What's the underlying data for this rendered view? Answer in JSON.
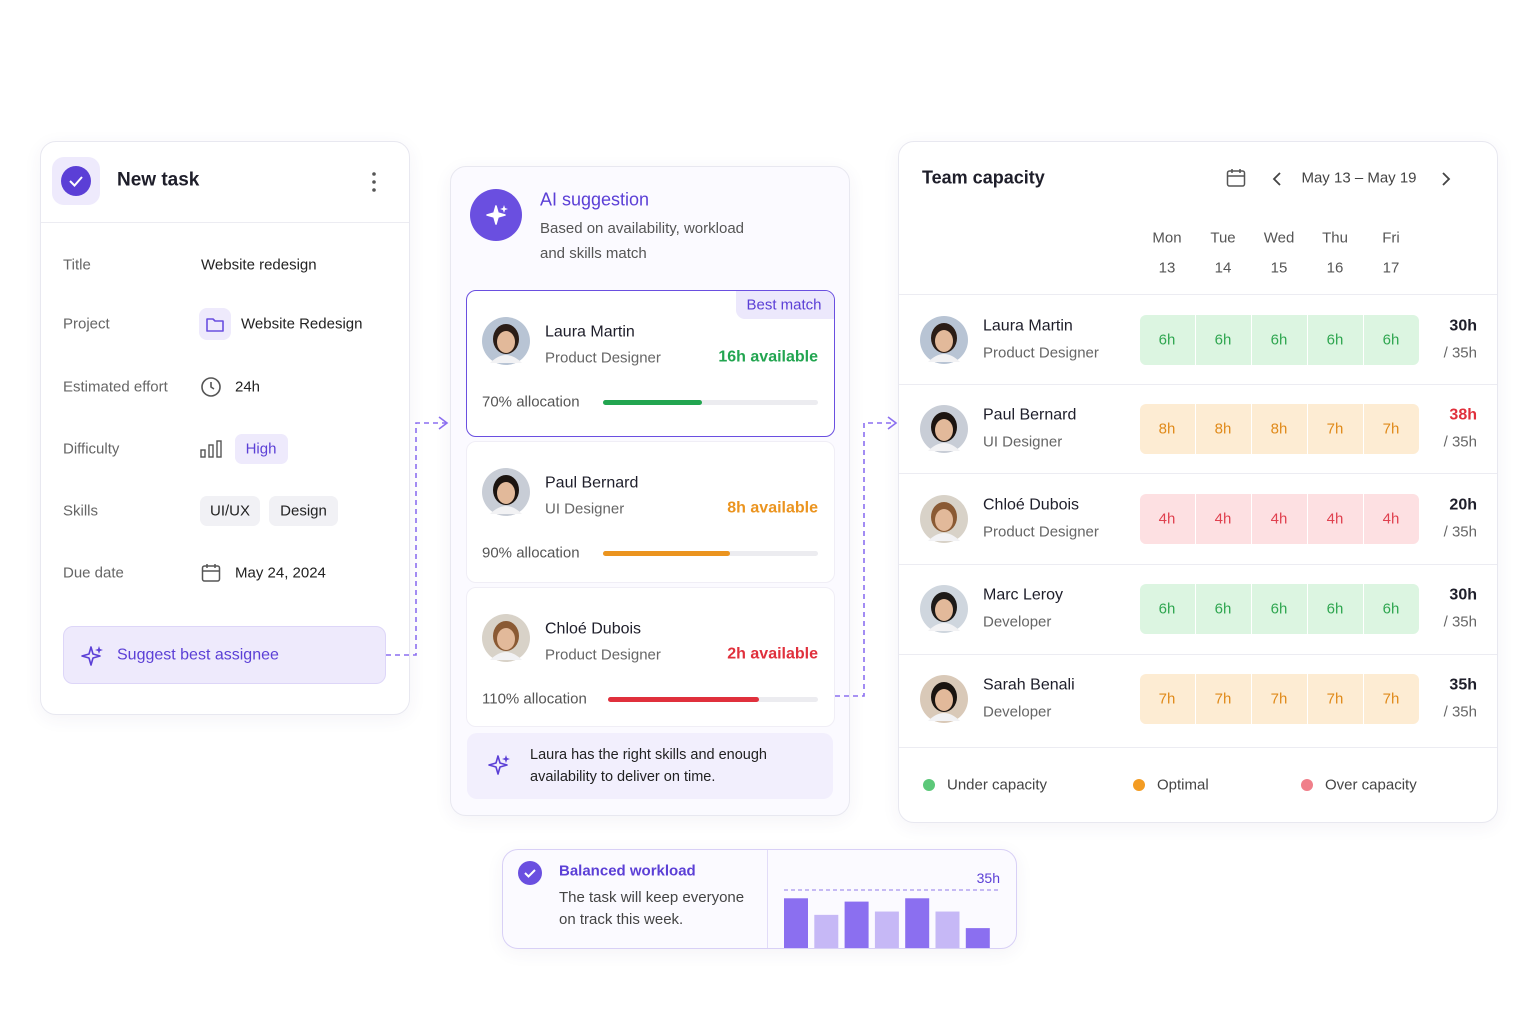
{
  "task": {
    "title": "New task",
    "fields": {
      "title": {
        "label": "Title",
        "value": "Website redesign"
      },
      "project": {
        "label": "Project",
        "value": "Website Redesign"
      },
      "effort": {
        "label": "Estimated effort",
        "value": "24h"
      },
      "difficulty": {
        "label": "Difficulty",
        "value": "High"
      },
      "skills": {
        "label": "Skills",
        "values": [
          "UI/UX",
          "Design"
        ]
      },
      "due": {
        "label": "Due date",
        "value": "May 24, 2024"
      }
    },
    "button": "Suggest best assignee"
  },
  "ai": {
    "title": "AI suggestion",
    "subtitle": "Based on availability, workload and skills match",
    "badge": "Best match",
    "candidates": [
      {
        "name": "Laura Martin",
        "role": "Product Designer",
        "available": "16h available",
        "allocation": 70,
        "allocation_label": "70% allocation",
        "color": "#22a550"
      },
      {
        "name": "Paul Bernard",
        "role": "UI Designer",
        "available": "8h available",
        "allocation": 90,
        "allocation_label": "90% allocation",
        "color": "#eb941f"
      },
      {
        "name": "Chloé Dubois",
        "role": "Product Designer",
        "available": "2h available",
        "allocation": 110,
        "allocation_label": "110% allocation",
        "color": "#e0303c"
      }
    ],
    "note": "Laura has the right skills and enough availability to deliver on time."
  },
  "capacity": {
    "title": "Team capacity",
    "range": "May 13 – May 19",
    "days": [
      {
        "day": "Mon",
        "date": 13
      },
      {
        "day": "Tue",
        "date": 14
      },
      {
        "day": "Wed",
        "date": 15
      },
      {
        "day": "Thu",
        "date": 16
      },
      {
        "day": "Fri",
        "date": 17
      }
    ],
    "legend": [
      {
        "label": "Under capacity",
        "color": "#5cc879",
        "bg": "#dcf5e1",
        "fg": "#2fa650"
      },
      {
        "label": "Optimal",
        "color": "#f39c23",
        "bg": "#fdecd3",
        "fg": "#e08a1a"
      },
      {
        "label": "Over capacity",
        "color": "#f07f8a",
        "bg": "#fde0e2",
        "fg": "#e0414f"
      }
    ],
    "members": [
      {
        "name": "Laura Martin",
        "role": "Product Designer",
        "hours": [
          "6h",
          "6h",
          "6h",
          "6h",
          "6h"
        ],
        "tone": 0,
        "total": "30h",
        "limit": "/ 35h",
        "total_color": "#1e1e2a"
      },
      {
        "name": "Paul Bernard",
        "role": "UI Designer",
        "hours": [
          "8h",
          "8h",
          "8h",
          "7h",
          "7h"
        ],
        "tone": 1,
        "total": "38h",
        "limit": "/ 35h",
        "total_color": "#e0303c"
      },
      {
        "name": "Chloé Dubois",
        "role": "Product Designer",
        "hours": [
          "4h",
          "4h",
          "4h",
          "4h",
          "4h"
        ],
        "tone": 2,
        "total": "20h",
        "limit": "/ 35h",
        "total_color": "#1e1e2a"
      },
      {
        "name": "Marc Leroy",
        "role": "Developer",
        "hours": [
          "6h",
          "6h",
          "6h",
          "6h",
          "6h"
        ],
        "tone": 0,
        "total": "30h",
        "limit": "/ 35h",
        "total_color": "#1e1e2a"
      },
      {
        "name": "Sarah Benali",
        "role": "Developer",
        "hours": [
          "7h",
          "7h",
          "7h",
          "7h",
          "7h"
        ],
        "tone": 1,
        "total": "35h",
        "limit": "/ 35h",
        "total_color": "#1e1e2a"
      }
    ]
  },
  "summary": {
    "title": "Balanced workload",
    "text": "The task will keep everyone on track this week.",
    "chart_data": {
      "type": "bar",
      "values": [
        30,
        20,
        28,
        22,
        30,
        22,
        12
      ],
      "colors": [
        "#8b6ff0",
        "#c6b8f6",
        "#8b6ff0",
        "#c6b8f6",
        "#8b6ff0",
        "#c6b8f6",
        "#8b6ff0"
      ],
      "ylim": [
        0,
        35
      ],
      "target": {
        "value": 35,
        "label": "35h"
      }
    }
  }
}
